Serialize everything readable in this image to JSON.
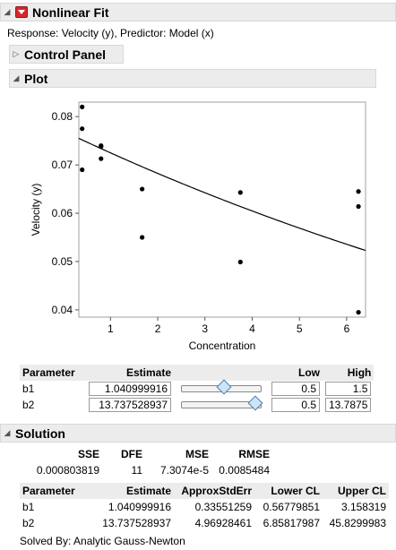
{
  "header": {
    "title": "Nonlinear Fit"
  },
  "response_line": "Response: Velocity (y), Predictor: Model (x)",
  "control_panel": {
    "title": "Control Panel"
  },
  "plot": {
    "title": "Plot"
  },
  "chart_data": {
    "type": "scatter",
    "xlabel": "Concentration",
    "ylabel": "Velocity (y)",
    "xlim": [
      0.33,
      6.4
    ],
    "ylim": [
      0.0385,
      0.083
    ],
    "xticks": [
      1,
      2,
      3,
      4,
      5,
      6
    ],
    "yticks": [
      0.04,
      0.05,
      0.06,
      0.07,
      0.08
    ],
    "xtick_labels": [
      "1",
      "2",
      "3",
      "4",
      "5",
      "6"
    ],
    "ytick_labels": [
      "0.04",
      "0.05",
      "0.06",
      "0.07",
      "0.08"
    ],
    "points": {
      "x": [
        0.4,
        0.4,
        0.4,
        0.8,
        0.8,
        0.8,
        1.67,
        1.67,
        3.75,
        3.75,
        6.25,
        6.25,
        6.25
      ],
      "y": [
        0.082,
        0.0775,
        0.069,
        0.074,
        0.0738,
        0.0713,
        0.065,
        0.055,
        0.0643,
        0.0499,
        0.0645,
        0.0614,
        0.0395
      ]
    },
    "fit": {
      "b1": 1.040999916,
      "b2": 13.737528937
    }
  },
  "param_table": {
    "headers": [
      "Parameter",
      "Estimate",
      "Low",
      "High"
    ],
    "rows": [
      {
        "name": "b1",
        "estimate": "1.040999916",
        "fraction": 0.54,
        "low": "0.5",
        "high": "1.5"
      },
      {
        "name": "b2",
        "estimate": "13.737528937",
        "fraction": 1.0,
        "low": "0.5",
        "high": "13.7875"
      }
    ]
  },
  "solution": {
    "title": "Solution",
    "stats_headers": [
      "SSE",
      "DFE",
      "MSE",
      "RMSE"
    ],
    "stats_values": [
      "0.000803819",
      "11",
      "7.3074e-5",
      "0.0085484"
    ],
    "est_headers": [
      "Parameter",
      "Estimate",
      "ApproxStdErr",
      "Lower CL",
      "Upper CL"
    ],
    "est_rows": [
      [
        "b1",
        "1.040999916",
        "0.33551259",
        "0.56779851",
        "3.158319"
      ],
      [
        "b2",
        "13.737528937",
        "4.96928461",
        "6.85817987",
        "45.8299983"
      ]
    ],
    "solved_by": "Solved By:  Analytic Gauss-Newton"
  }
}
